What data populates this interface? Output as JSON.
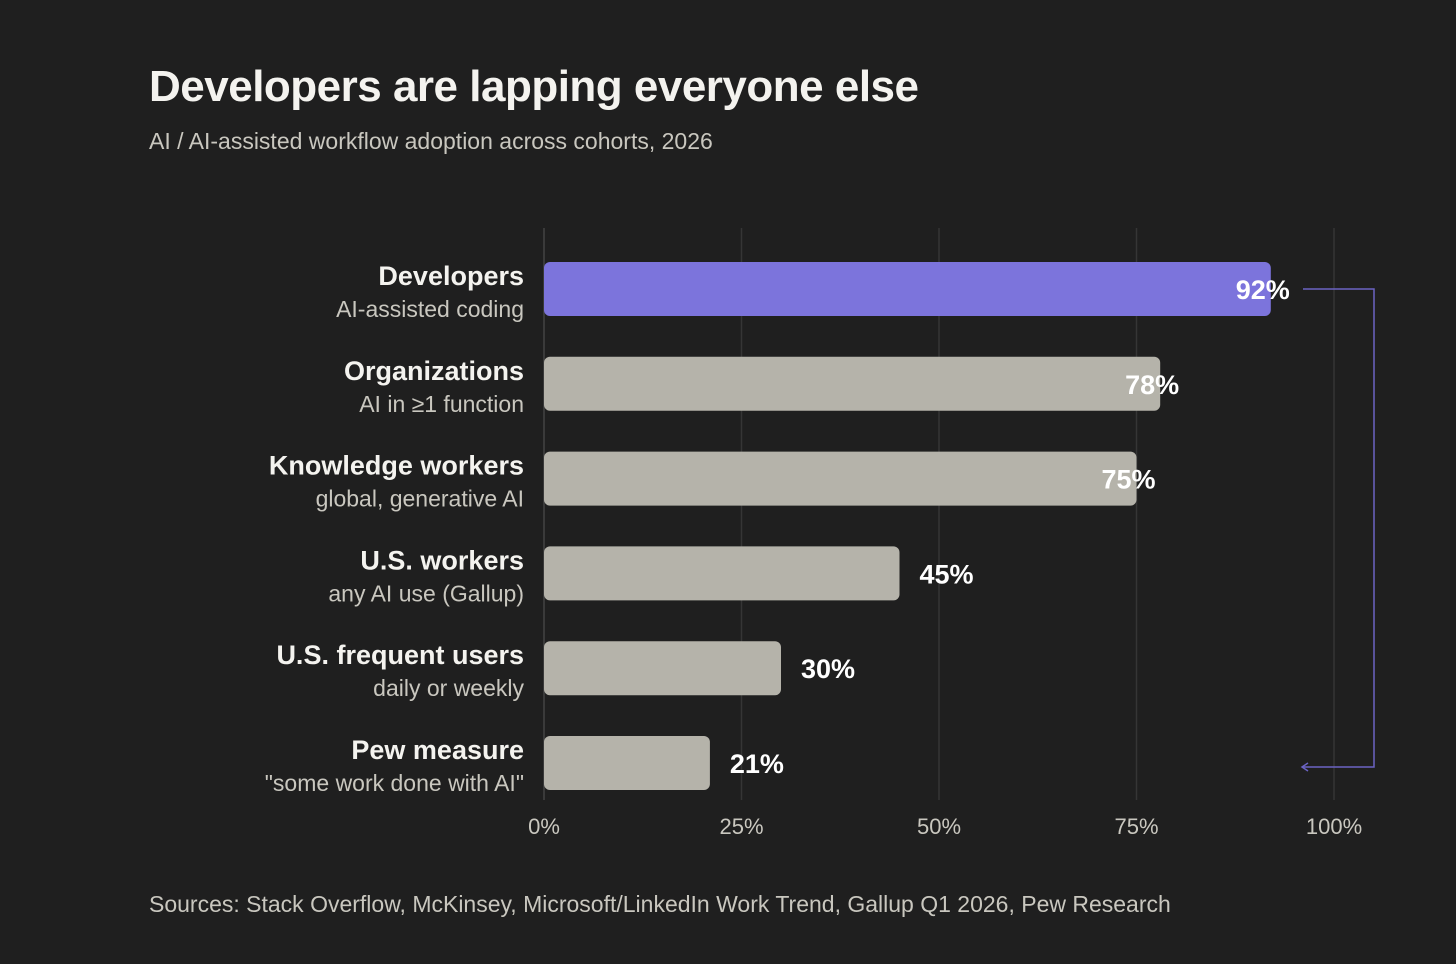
{
  "chart_data": {
    "type": "bar",
    "orientation": "horizontal",
    "title": "Developers are lapping everyone else",
    "subtitle": "AI / AI-assisted workflow adoption across cohorts, 2026",
    "categories": [
      "Developers",
      "Organizations",
      "Knowledge workers",
      "U.S. workers",
      "U.S. frequent users",
      "Pew measure"
    ],
    "sublabels": [
      "AI-assisted coding",
      "AI in ≥1 function",
      "global, generative AI",
      "any AI use (Gallup)",
      "daily or weekly",
      "\"some work done with AI\""
    ],
    "values": [
      92,
      78,
      75,
      45,
      30,
      21
    ],
    "value_labels": [
      "92%",
      "78%",
      "75%",
      "45%",
      "30%",
      "21%"
    ],
    "highlight_index": 0,
    "xlim": [
      0,
      100
    ],
    "xticks": [
      0,
      25,
      50,
      75,
      100
    ],
    "xtick_labels": [
      "0%",
      "25%",
      "50%",
      "75%",
      "100%"
    ],
    "grid": true,
    "annotation": "bracket arrow from Developers bar to Pew measure bar",
    "source": "Sources: Stack Overflow, McKinsey, Microsoft/LinkedIn Work Trend, Gallup Q1 2026, Pew Research",
    "colors": {
      "background": "#1f1f1f",
      "highlight": "#7c74dc",
      "bar": "#b5b3aa",
      "bracket": "#6b63c4",
      "grid": "#353535"
    }
  }
}
